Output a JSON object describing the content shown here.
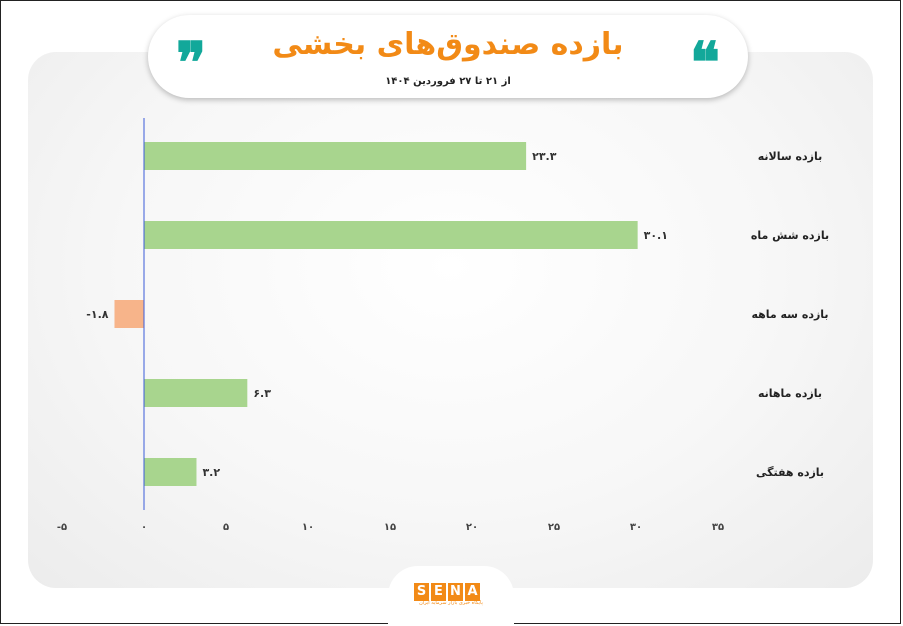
{
  "header": {
    "title": "بازده صندوق‌های بخشی",
    "subtitle": "از ۲۱ تا ۲۷ فروردین ۱۴۰۴",
    "quote_open": "❞",
    "quote_close": "❝"
  },
  "logo": {
    "letters": [
      "S",
      "E",
      "N",
      "A"
    ],
    "caption": "پایگاه خبری بازار سرمایه ایران"
  },
  "colors": {
    "title": "#f28a16",
    "quote": "#12a89a",
    "positive_bar": "#a8d58e",
    "negative_bar": "#f7b48a",
    "zero_line": "#3a5bd9"
  },
  "chart_data": {
    "type": "bar",
    "orientation": "horizontal",
    "categories": [
      "بازده سالانه",
      "بازده شش ماه",
      "بازده سه ماهه",
      "بازده ماهانه",
      "بازده هفتگی"
    ],
    "values": [
      23.3,
      30.1,
      -1.8,
      6.3,
      3.2
    ],
    "value_labels": [
      "۲۳.۳",
      "۳۰.۱",
      "-۱.۸",
      "۶.۳",
      "۳.۲"
    ],
    "xlim": [
      -5,
      35
    ],
    "xticks": [
      -5,
      0,
      5,
      10,
      15,
      20,
      25,
      30,
      35
    ],
    "xtick_labels": [
      "-۵",
      "۰",
      "۵",
      "۱۰",
      "۱۵",
      "۲۰",
      "۲۵",
      "۳۰",
      "۳۵"
    ],
    "grid": false,
    "legend": "none"
  }
}
